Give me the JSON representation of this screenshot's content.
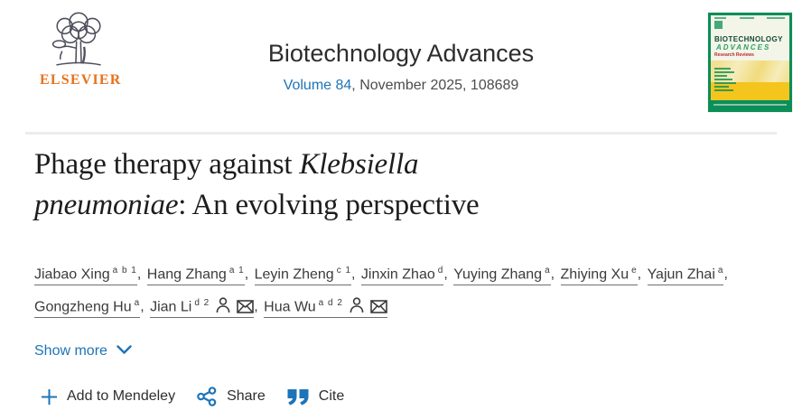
{
  "header": {
    "elsevier_wordmark": "ELSEVIER",
    "journal_title": "Biotechnology Advances",
    "volume_link": "Volume 84",
    "issue_info": ", November 2025, 108689"
  },
  "cover": {
    "title_line1": "BIOTECHNOLOGY",
    "title_line2": "ADVANCES",
    "subtitle": "Research Reviews"
  },
  "article": {
    "title_l1_text": "Phage therapy against ",
    "title_l1_italic": "Klebsiella",
    "title_l2_italic": "pneumoniae",
    "title_l2_text": ": An evolving perspective"
  },
  "authors": [
    {
      "name": "Jiabao Xing",
      "sup": "a b 1",
      "person": false,
      "email": false
    },
    {
      "name": "Hang Zhang",
      "sup": "a 1",
      "person": false,
      "email": false
    },
    {
      "name": "Leyin Zheng",
      "sup": "c 1",
      "person": false,
      "email": false
    },
    {
      "name": "Jinxin Zhao",
      "sup": "d",
      "person": false,
      "email": false
    },
    {
      "name": "Yuying Zhang",
      "sup": "a",
      "person": false,
      "email": false
    },
    {
      "name": "Zhiying Xu",
      "sup": "e",
      "person": false,
      "email": false
    },
    {
      "name": "Yajun Zhai",
      "sup": "a",
      "person": false,
      "email": false
    },
    {
      "name": "Gongzheng Hu",
      "sup": "a",
      "person": false,
      "email": false
    },
    {
      "name": "Jian Li",
      "sup": "d 2",
      "person": true,
      "email": true
    },
    {
      "name": "Hua Wu",
      "sup": "a d 2",
      "person": true,
      "email": true
    }
  ],
  "show_more_label": "Show more",
  "actions": {
    "mendeley": "Add to Mendeley",
    "share": "Share",
    "cite": "Cite"
  },
  "colors": {
    "link_blue": "#1d74b8",
    "elsevier_orange": "#e8711a",
    "cover_green": "#0b8e57",
    "cover_yellow": "#f4c51d",
    "divider_gray": "#ececec"
  }
}
